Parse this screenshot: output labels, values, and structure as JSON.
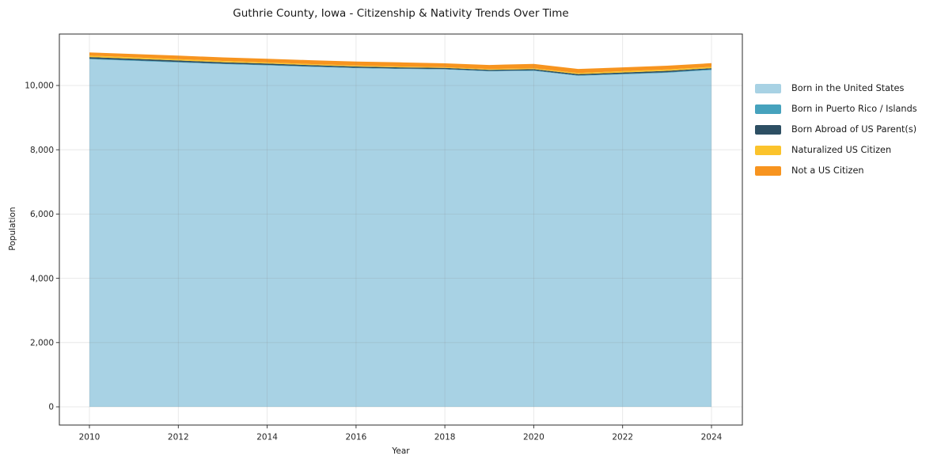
{
  "chart_data": {
    "type": "area",
    "stacked": true,
    "title": "Guthrie County, Iowa - Citizenship & Nativity Trends Over Time",
    "xlabel": "Year",
    "ylabel": "Population",
    "grid": true,
    "legend_position": "right-outside",
    "ylim": [
      0,
      11600
    ],
    "x": [
      2010,
      2011,
      2012,
      2013,
      2014,
      2015,
      2016,
      2017,
      2018,
      2019,
      2020,
      2021,
      2022,
      2023,
      2024
    ],
    "series": [
      {
        "name": "Born in the United States",
        "color": "#a8d2e4",
        "values": [
          10815,
          10765,
          10715,
          10665,
          10625,
          10580,
          10540,
          10515,
          10500,
          10440,
          10455,
          10300,
          10345,
          10395,
          10480
        ]
      },
      {
        "name": "Born in Puerto Rico / Islands",
        "color": "#46a2bd",
        "values": [
          20,
          20,
          18,
          16,
          15,
          14,
          12,
          12,
          10,
          12,
          15,
          15,
          18,
          20,
          22
        ]
      },
      {
        "name": "Born Abroad of US Parent(s)",
        "color": "#2d4f63",
        "values": [
          50,
          48,
          46,
          44,
          42,
          40,
          40,
          38,
          38,
          36,
          38,
          40,
          42,
          40,
          38
        ]
      },
      {
        "name": "Naturalized US Citizen",
        "color": "#fbc32c",
        "values": [
          45,
          42,
          40,
          38,
          35,
          32,
          28,
          25,
          22,
          25,
          30,
          35,
          40,
          42,
          42
        ]
      },
      {
        "name": "Not a US Citizen",
        "color": "#f7941f",
        "values": [
          100,
          105,
          110,
          112,
          115,
          120,
          125,
          130,
          120,
          125,
          135,
          125,
          120,
          118,
          112
        ]
      }
    ],
    "xticks": {
      "values": [
        2010,
        2012,
        2014,
        2016,
        2018,
        2020,
        2022,
        2024
      ],
      "labels": [
        "2010",
        "2012",
        "2014",
        "2016",
        "2018",
        "2020",
        "2022",
        "2024"
      ]
    },
    "yticks": {
      "values": [
        0,
        2000,
        4000,
        6000,
        8000,
        10000
      ],
      "labels": [
        "0",
        "2,000",
        "4,000",
        "6,000",
        "8,000",
        "10,000"
      ]
    }
  },
  "colors": {
    "spine": "#2b2b2b",
    "tick_label": "#262626",
    "grid": "rgba(130,130,130,0.22)",
    "background": "#ffffff"
  }
}
